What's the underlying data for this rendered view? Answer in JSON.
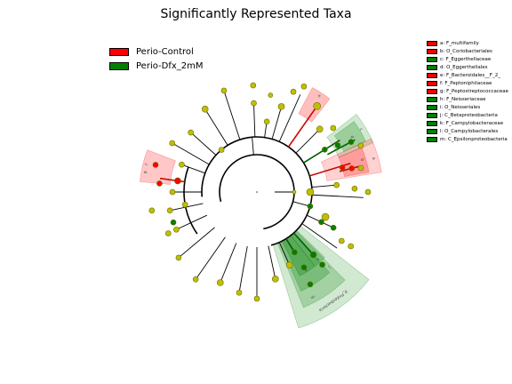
{
  "chart_data": {
    "type": "cladogram",
    "title": "Significantly Represented Taxa",
    "groups": [
      {
        "name": "Perio-Control",
        "color": "#ff0000"
      },
      {
        "name": "Perio-Dfx_2mM",
        "color": "#008000"
      }
    ],
    "clade_legend": [
      {
        "key": "a",
        "label": "a: F_multifamily",
        "group": "Perio-Control"
      },
      {
        "key": "b",
        "label": "b: O_Coriobacteriales",
        "group": "Perio-Control"
      },
      {
        "key": "c",
        "label": "c: F_Eggerthellaceae",
        "group": "Perio-Dfx_2mM"
      },
      {
        "key": "d",
        "label": "d: O_Eggerthellales",
        "group": "Perio-Dfx_2mM"
      },
      {
        "key": "e",
        "label": "e: F_Bacteroidales__F_2_",
        "group": "Perio-Control"
      },
      {
        "key": "f",
        "label": "f: F_Peptoniphilaceae",
        "group": "Perio-Control"
      },
      {
        "key": "g",
        "label": "g: F_Peptostreptococcaceae",
        "group": "Perio-Control"
      },
      {
        "key": "h",
        "label": "h: F_Neisseriaceae",
        "group": "Perio-Dfx_2mM"
      },
      {
        "key": "i",
        "label": "i: O_Neisseriales",
        "group": "Perio-Dfx_2mM"
      },
      {
        "key": "j",
        "label": "j: C_Betaproteobacteria",
        "group": "Perio-Dfx_2mM"
      },
      {
        "key": "k",
        "label": "k: F_Campylobacteraceae",
        "group": "Perio-Dfx_2mM"
      },
      {
        "key": "l",
        "label": "l: O_Campylobacterales",
        "group": "Perio-Dfx_2mM"
      },
      {
        "key": "m",
        "label": "m: C_Epsilonproteobacteria",
        "group": "Perio-Dfx_2mM"
      }
    ],
    "sector_labels": [
      "a",
      "b",
      "c",
      "d",
      "e",
      "f",
      "g",
      "h",
      "i",
      "j",
      "k",
      "l",
      "m",
      "p_Proteobacteria"
    ],
    "colors": {
      "control": "#ff0000",
      "dfx": "#008000",
      "node": "#bfbf00",
      "node_edge": "#6b6b00"
    }
  }
}
